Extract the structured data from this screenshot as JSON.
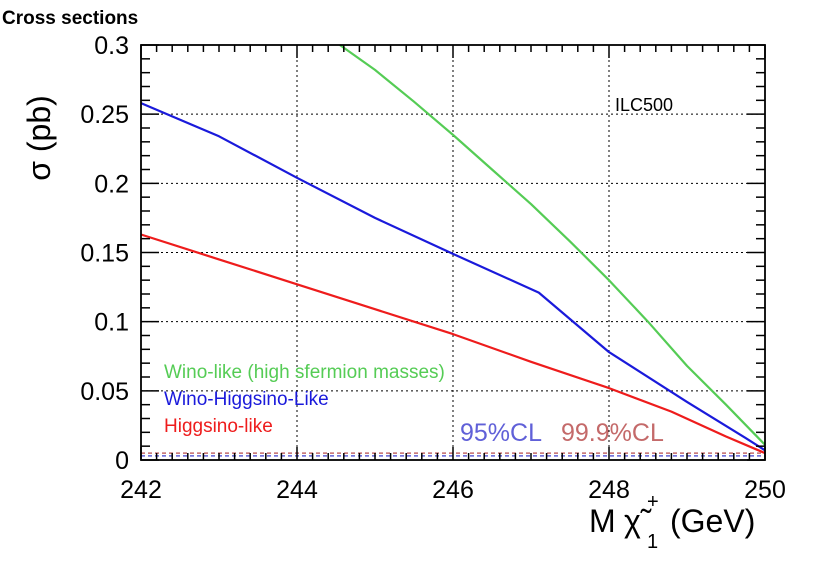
{
  "chart_data": {
    "type": "line",
    "title": "Cross sections",
    "annotation": "ILC500",
    "xlabel_prefix": "M",
    "xlabel_symbol": "χ̃",
    "xlabel_sup": "+",
    "xlabel_sub": "1",
    "xlabel_unit": "(GeV)",
    "ylabel": "σ (pb)",
    "xlim": [
      242,
      250
    ],
    "ylim": [
      0,
      0.3
    ],
    "grid": true,
    "xticks": [
      242,
      244,
      246,
      248,
      250
    ],
    "xtick_labels": [
      "242",
      "244",
      "246",
      "248",
      "250"
    ],
    "yticks": [
      0,
      0.05,
      0.1,
      0.15,
      0.2,
      0.25,
      0.3
    ],
    "ytick_labels": [
      "0",
      "0.05",
      "0.1",
      "0.15",
      "0.2",
      "0.25",
      "0.3"
    ],
    "series": [
      {
        "name": "Wino-like (high sfermion masses)",
        "color": "#55cc55",
        "x": [
          244.55,
          245.0,
          245.5,
          246.0,
          246.5,
          247.0,
          247.5,
          248.0,
          248.5,
          249.0,
          249.5,
          250.0
        ],
        "y": [
          0.3,
          0.282,
          0.259,
          0.235,
          0.21,
          0.185,
          0.158,
          0.13,
          0.1,
          0.068,
          0.04,
          0.011
        ]
      },
      {
        "name": "Wino-Higgsino-Like",
        "color": "#1a1adb",
        "x": [
          242.0,
          243.0,
          244.0,
          245.0,
          246.0,
          247.1,
          248.0,
          249.0,
          249.75,
          250.0
        ],
        "y": [
          0.258,
          0.234,
          0.204,
          0.175,
          0.149,
          0.121,
          0.078,
          0.042,
          0.016,
          0.007
        ]
      },
      {
        "name": "Higgsino-like",
        "color": "#ee1c1c",
        "x": [
          242.0,
          243.0,
          244.0,
          245.0,
          246.0,
          247.0,
          248.0,
          248.8,
          249.5,
          250.0
        ],
        "y": [
          0.163,
          0.145,
          0.127,
          0.109,
          0.091,
          0.071,
          0.052,
          0.035,
          0.017,
          0.005
        ]
      }
    ],
    "limits": [
      {
        "label": "95%CL",
        "color": "#6060d8",
        "value": 0.003
      },
      {
        "label": "99.9%CL",
        "color": "#c46a6a",
        "value": 0.005
      }
    ]
  }
}
